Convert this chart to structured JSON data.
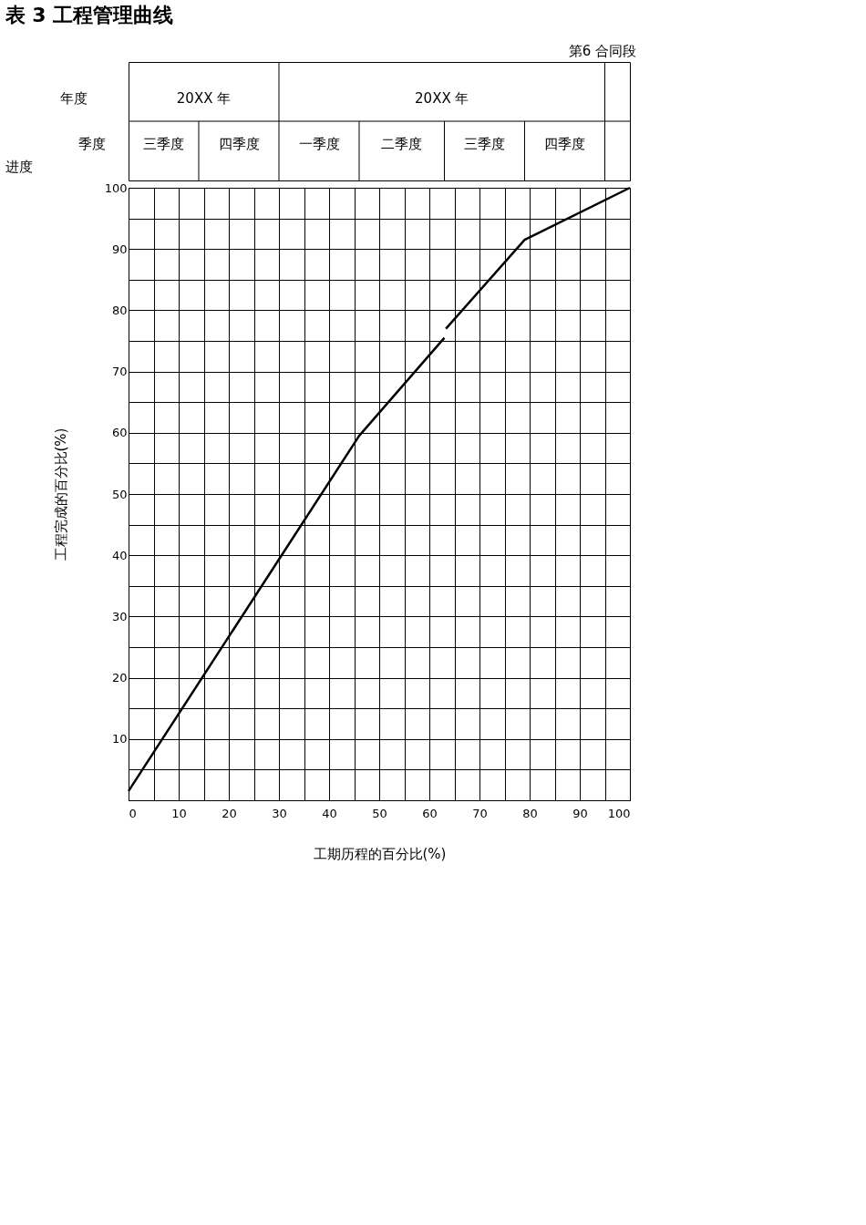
{
  "chart_data": {
    "type": "line",
    "title": "表 3 工程管理曲线",
    "xlabel": "工期历程的百分比(%)",
    "ylabel": "工程完成的百分比(%)",
    "annotations": [
      "第6 合同段",
      "年度",
      "季度",
      "进度",
      "20XX 年",
      "20XX 年",
      "三季度",
      "四季度",
      "一季度",
      "二季度",
      "三季度",
      "四季度"
    ],
    "series": [
      {
        "color": "#000000",
        "x": [
          0,
          46,
          63,
          63.15,
          63.3,
          79,
          100
        ],
        "values": [
          1.5,
          59.5,
          75.5,
          null,
          77,
          91.5,
          100
        ]
      }
    ],
    "xlim": [
      0,
      100
    ],
    "ylim": [
      0,
      100
    ],
    "xticks": [
      0,
      {
        "value": 5,
        "label": null
      },
      10,
      {
        "value": 15,
        "label": null
      },
      20,
      {
        "value": 25,
        "label": null
      },
      30,
      {
        "value": 35,
        "label": null
      },
      40,
      {
        "value": 45,
        "label": null
      },
      50,
      {
        "value": 55,
        "label": null
      },
      60,
      {
        "value": 65,
        "label": null
      },
      70,
      {
        "value": 75,
        "label": null
      },
      80,
      {
        "value": 85,
        "label": null
      },
      90,
      {
        "value": 95,
        "label": null
      },
      100
    ],
    "yticks": [
      {
        "value": 0,
        "label": null
      },
      {
        "value": 5,
        "label": null
      },
      10,
      {
        "value": 15,
        "label": null
      },
      20,
      {
        "value": 25,
        "label": null
      },
      30,
      {
        "value": 35,
        "label": null
      },
      40,
      {
        "value": 45,
        "label": null
      },
      50,
      {
        "value": 55,
        "label": null
      },
      60,
      {
        "value": 65,
        "label": null
      },
      70,
      {
        "value": 75,
        "label": null
      },
      80,
      {
        "value": 85,
        "label": null
      },
      90,
      {
        "value": 95,
        "label": null
      },
      100
    ],
    "grid": true,
    "legend": false,
    "marker": "none",
    "line_style": "solid"
  }
}
